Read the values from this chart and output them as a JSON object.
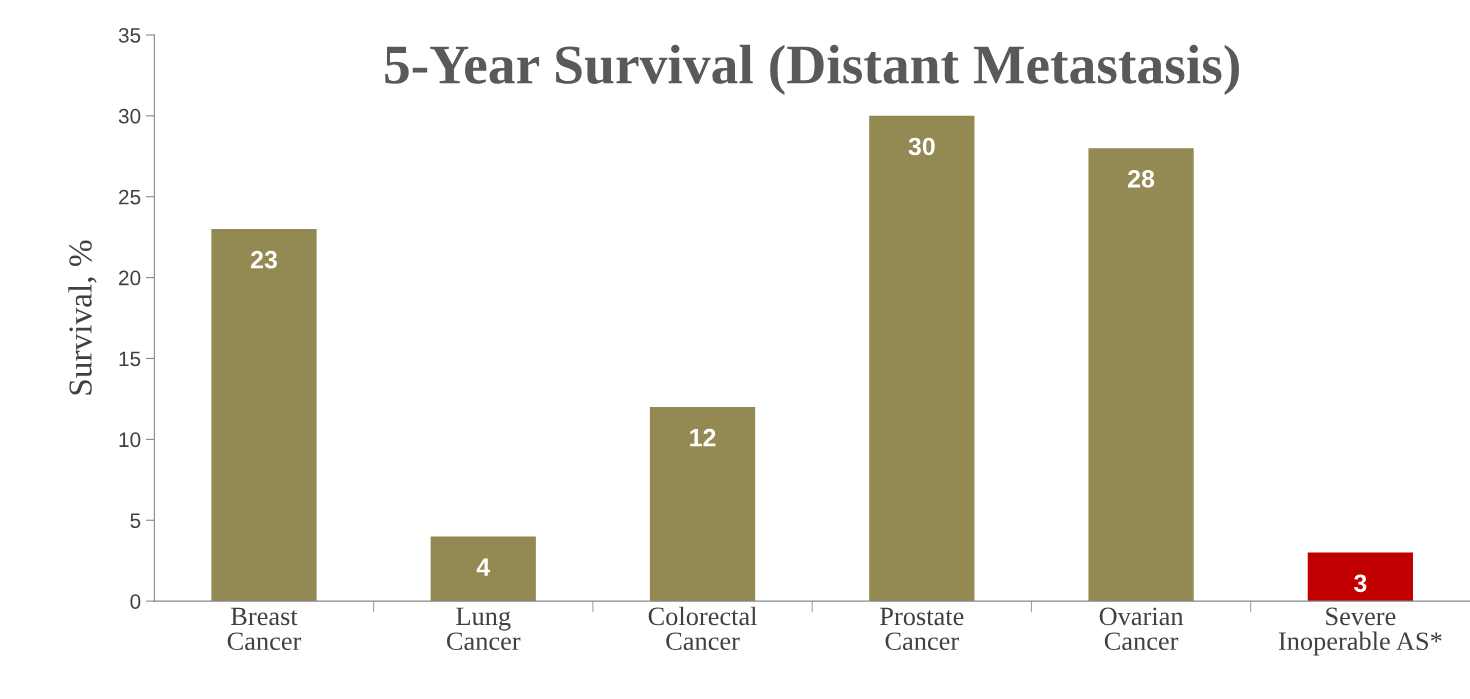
{
  "chart_data": {
    "type": "bar",
    "title": "5-Year Survival (Distant Metastasis)",
    "ylabel": "Survival, %",
    "categories": [
      "Breast Cancer",
      "Lung Cancer",
      "Colorectal Cancer",
      "Prostate Cancer",
      "Ovarian Cancer",
      "Severe Inoperable AS*"
    ],
    "values": [
      23,
      4,
      12,
      30,
      28,
      3
    ],
    "colors": [
      "#938953",
      "#938953",
      "#938953",
      "#938953",
      "#938953",
      "#c00000"
    ],
    "ylim": [
      0,
      35
    ],
    "yticks": [
      0,
      5,
      10,
      15,
      20,
      25,
      30,
      35
    ],
    "grid": false,
    "data_labels": true
  }
}
